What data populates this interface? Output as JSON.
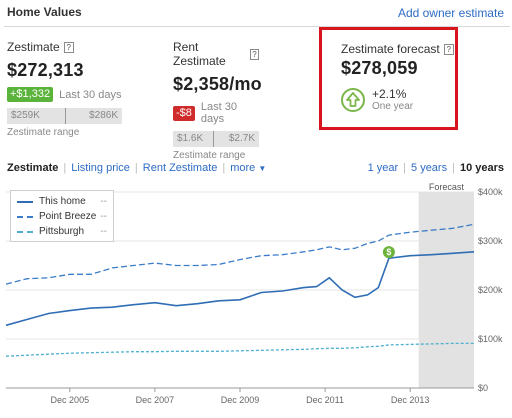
{
  "header": {
    "title": "Home Values",
    "owner_link": "Add owner estimate"
  },
  "zestimate": {
    "label": "Zestimate",
    "help": "?",
    "value": "$272,313",
    "change": "+$1,332",
    "change_period": "Last 30 days",
    "range_low": "$259K",
    "range_high": "$286K",
    "range_label": "Zestimate range"
  },
  "rent": {
    "label": "Rent Zestimate",
    "help": "?",
    "value": "$2,358/mo",
    "change": "-$8",
    "change_period": "Last 30 days",
    "range_low": "$1.6K",
    "range_high": "$2.7K",
    "range_label": "Zestimate range"
  },
  "forecast": {
    "label": "Zestimate forecast",
    "help": "?",
    "value": "$278,059",
    "pct": "+2.1%",
    "period": "One year"
  },
  "tabs": {
    "zestimate": "Zestimate",
    "listing": "Listing price",
    "rent": "Rent Zestimate",
    "more": "more"
  },
  "range_tabs": {
    "one_year": "1 year",
    "five_years": "5 years",
    "ten_years": "10 years"
  },
  "colors": {
    "this_home": "#2f6db5",
    "point_breeze": "#3b7dc8",
    "pittsburgh": "#4fb0cf",
    "forecast_shade": "#e2e2e2",
    "sale_marker": "#6ab23a",
    "highlight_box": "#d8141c"
  },
  "chart_data": {
    "type": "line",
    "x": [
      2004.0,
      2004.5,
      2005.0,
      2005.5,
      2006.0,
      2006.5,
      2007.0,
      2007.5,
      2008.0,
      2008.5,
      2009.0,
      2009.5,
      2010.0,
      2010.5,
      2011.0,
      2011.3,
      2011.6,
      2011.9,
      2012.2,
      2012.5,
      2012.75,
      2013.0,
      2013.5,
      2014.0,
      2014.5,
      2015.0
    ],
    "series": [
      {
        "name": "This home",
        "values": [
          128,
          140,
          152,
          158,
          163,
          165,
          170,
          174,
          168,
          172,
          178,
          180,
          195,
          198,
          205,
          207,
          225,
          200,
          185,
          190,
          205,
          265,
          270,
          272,
          275,
          278
        ]
      },
      {
        "name": "Point Breeze",
        "values": [
          212,
          223,
          225,
          232,
          232,
          245,
          250,
          255,
          250,
          250,
          252,
          262,
          270,
          272,
          278,
          282,
          288,
          282,
          285,
          295,
          300,
          312,
          318,
          322,
          326,
          334
        ]
      },
      {
        "name": "Pittsburgh",
        "values": [
          65,
          67,
          69,
          71,
          72,
          73,
          74,
          74,
          75,
          75,
          75,
          76,
          77,
          78,
          79,
          80,
          81,
          81,
          82,
          84,
          85,
          88,
          89,
          90,
          91,
          91
        ]
      }
    ],
    "legend_values": [
      "--",
      "--",
      "--"
    ],
    "forecast_label": "Forecast",
    "forecast_range": [
      2013.7,
      2015.0
    ],
    "sale_marker": {
      "x": 2013.0,
      "y": 265,
      "label": "$"
    },
    "xticks": [
      {
        "value": 2005.5,
        "label": "Dec 2005"
      },
      {
        "value": 2007.5,
        "label": "Dec 2007"
      },
      {
        "value": 2009.5,
        "label": "Dec 2009"
      },
      {
        "value": 2011.5,
        "label": "Dec 2011"
      },
      {
        "value": 2013.5,
        "label": "Dec 2013"
      }
    ],
    "yticks": [
      {
        "value": 0,
        "label": "$0"
      },
      {
        "value": 100,
        "label": "$100k"
      },
      {
        "value": 200,
        "label": "$200k"
      },
      {
        "value": 300,
        "label": "$300k"
      },
      {
        "value": 400,
        "label": "$400k"
      }
    ],
    "xlim": [
      2004.0,
      2015.0
    ],
    "ylim": [
      0,
      400
    ],
    "grid": "horizontal",
    "legend_position": "top-left"
  }
}
